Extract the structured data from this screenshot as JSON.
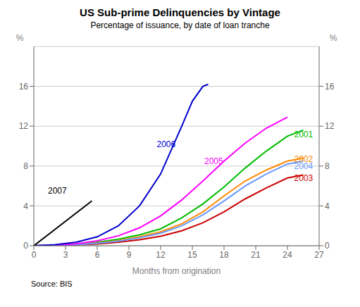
{
  "chart_data": {
    "type": "line",
    "title": "US Sub-prime Delinquencies by Vintage",
    "subtitle": "Percentage of issuance, by date of loan tranche",
    "xlabel": "Months from origination",
    "ylabel": "%",
    "y2label": "%",
    "source": "Source: BIS",
    "xlim": [
      0,
      27
    ],
    "ylim": [
      0,
      20
    ],
    "xticks": [
      0,
      3,
      6,
      9,
      12,
      15,
      18,
      21,
      24,
      27
    ],
    "yticks": [
      0,
      4,
      8,
      12,
      16
    ],
    "y2lim": [
      0,
      20
    ],
    "y2ticks": [
      0,
      4,
      8,
      12,
      16
    ],
    "grid": "y",
    "series": [
      {
        "name": "2001",
        "color": "#00bb00",
        "x": [
          0,
          2,
          4,
          6,
          8,
          10,
          12,
          14,
          16,
          18,
          20,
          22,
          24,
          25.5
        ],
        "values": [
          0,
          0.05,
          0.15,
          0.35,
          0.65,
          1.1,
          1.7,
          2.8,
          4.2,
          5.9,
          7.8,
          9.5,
          11.0,
          11.6
        ]
      },
      {
        "name": "2002",
        "color": "#ff8800",
        "x": [
          0,
          2,
          4,
          6,
          8,
          10,
          12,
          14,
          16,
          18,
          20,
          22,
          24,
          25.5
        ],
        "values": [
          0,
          0.04,
          0.12,
          0.28,
          0.52,
          0.9,
          1.4,
          2.2,
          3.4,
          5.0,
          6.5,
          7.6,
          8.5,
          8.8
        ]
      },
      {
        "name": "2003",
        "color": "#cc0000",
        "x": [
          0,
          2,
          4,
          6,
          8,
          10,
          12,
          14,
          16,
          18,
          20,
          22,
          24,
          25.5
        ],
        "values": [
          0,
          0.03,
          0.08,
          0.18,
          0.35,
          0.6,
          0.95,
          1.5,
          2.3,
          3.4,
          4.7,
          5.8,
          6.8,
          7.1
        ]
      },
      {
        "name": "2004",
        "color": "#6699ff",
        "x": [
          0,
          2,
          4,
          6,
          8,
          10,
          12,
          14,
          16,
          18,
          20,
          22,
          24,
          25.5
        ],
        "values": [
          0,
          0.04,
          0.1,
          0.24,
          0.46,
          0.8,
          1.25,
          2.0,
          3.1,
          4.5,
          6.0,
          7.2,
          8.2,
          8.5
        ]
      },
      {
        "name": "2005",
        "color": "#ff00ff",
        "x": [
          0,
          2,
          4,
          6,
          8,
          10,
          12,
          14,
          16,
          18,
          20,
          22,
          24
        ],
        "values": [
          0,
          0.06,
          0.2,
          0.5,
          1.0,
          1.8,
          3.0,
          4.6,
          6.5,
          8.5,
          10.3,
          11.8,
          12.9
        ]
      },
      {
        "name": "2006",
        "color": "#0000cc",
        "x": [
          0,
          2,
          4,
          6,
          8,
          10,
          12,
          14,
          15,
          16,
          16.5
        ],
        "values": [
          0,
          0.1,
          0.35,
          0.9,
          2.0,
          4.0,
          7.2,
          12.0,
          14.5,
          16.0,
          16.2
        ]
      },
      {
        "name": "2007",
        "color": "#000000",
        "x": [
          0,
          5.5
        ],
        "values": [
          0,
          4.5
        ]
      }
    ],
    "annotations": [
      {
        "text": "2001",
        "x": 24.5,
        "y": 11.2,
        "color": "#00bb00"
      },
      {
        "text": "2002",
        "x": 24.5,
        "y": 8.7,
        "color": "#ff8800"
      },
      {
        "text": "2003",
        "x": 24.5,
        "y": 6.8,
        "color": "#cc0000"
      },
      {
        "text": "2004",
        "x": 24.5,
        "y": 8.0,
        "color": "#6699ff"
      },
      {
        "text": "2005",
        "x": 16.0,
        "y": 8.5,
        "color": "#ff00ff"
      },
      {
        "text": "2006",
        "x": 11.5,
        "y": 10.2,
        "color": "#0000cc"
      },
      {
        "text": "2007",
        "x": 1.2,
        "y": 5.5,
        "color": "#000000"
      }
    ]
  }
}
